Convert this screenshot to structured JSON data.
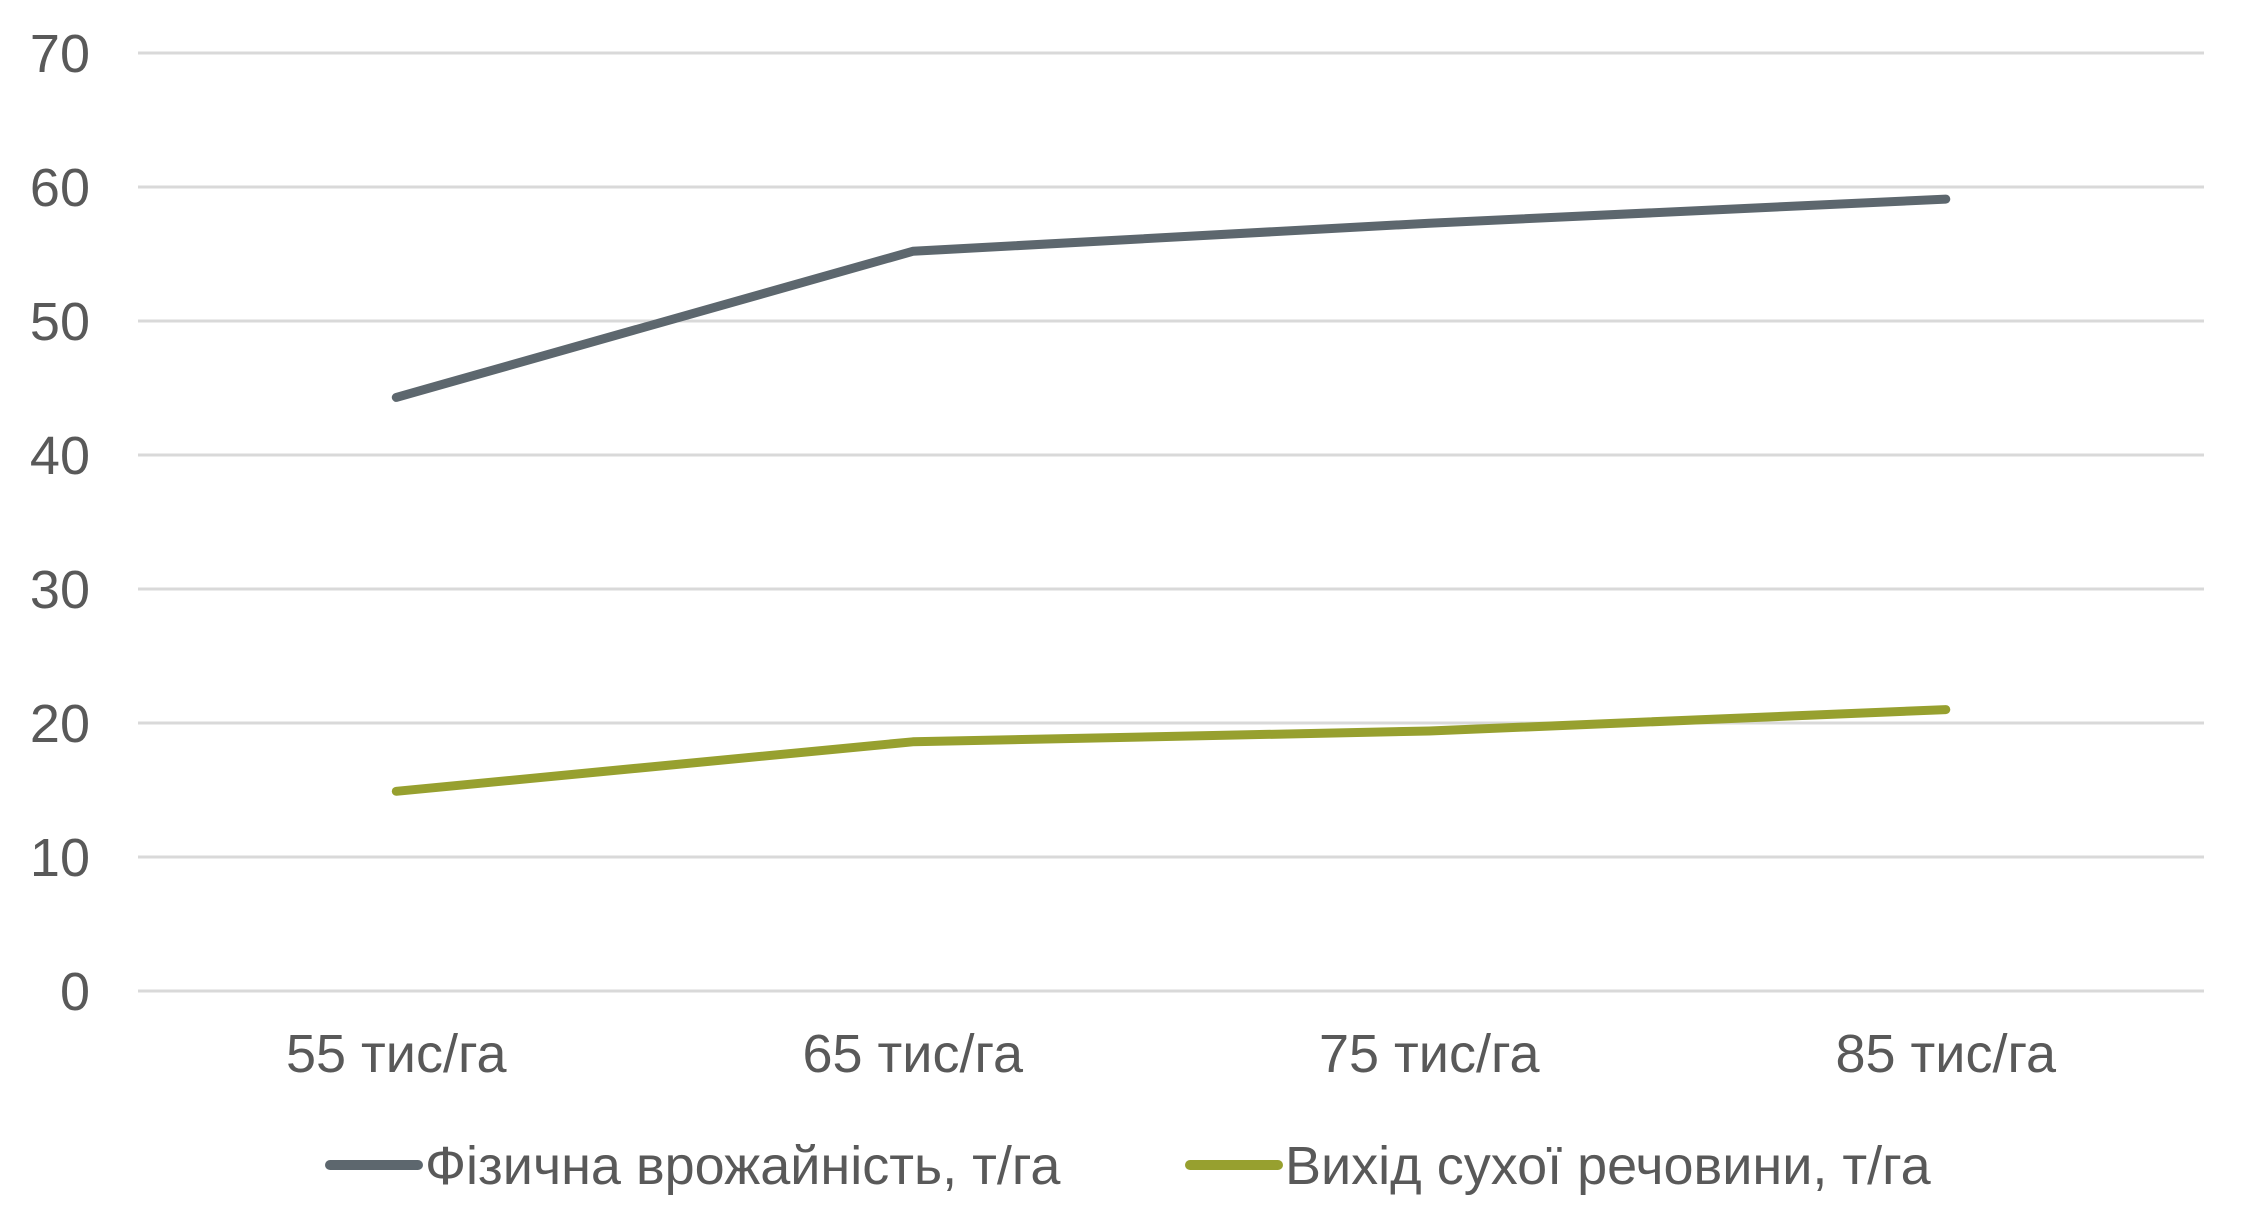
{
  "chart_data": {
    "type": "line",
    "title": "",
    "xlabel": "",
    "ylabel": "",
    "categories": [
      "55 тис/га",
      "65 тис/га",
      "75 тис/га",
      "85 тис/га"
    ],
    "series": [
      {
        "name": "Фізична врожайність, т/га",
        "color": "#5d676e",
        "values": [
          44.3,
          55.2,
          57.3,
          59.1
        ]
      },
      {
        "name": "Вихід сухої речовини, т/га",
        "color": "#97a02f",
        "values": [
          14.9,
          18.6,
          19.4,
          21.0
        ]
      }
    ],
    "ylim": [
      0,
      70
    ],
    "yticks": [
      0,
      10,
      20,
      30,
      40,
      50,
      60,
      70
    ],
    "grid": true,
    "legend_position": "bottom"
  },
  "legend": {
    "items": [
      {
        "label": "Фізична врожайність, т/га",
        "color": "#5d676e"
      },
      {
        "label": "Вихід сухої речовини, т/га",
        "color": "#97a02f"
      }
    ]
  },
  "axis": {
    "y_tick_labels": [
      "0",
      "10",
      "20",
      "30",
      "40",
      "50",
      "60",
      "70"
    ],
    "x_tick_labels": [
      "55 тис/га",
      "65 тис/га",
      "75 тис/га",
      "85 тис/га"
    ]
  }
}
